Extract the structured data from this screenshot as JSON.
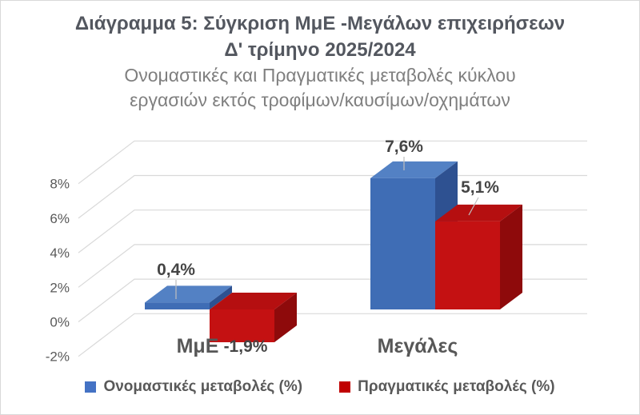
{
  "header": {
    "title_line1": "Διάγραμμα 5: Σύγκριση ΜμΕ -Μεγάλων επιχειρήσεων",
    "title_line2": "Δ' τρίμηνο 2025/2024",
    "subtitle_line1": "Ονομαστικές και Πραγματικές μεταβολές κύκλου",
    "subtitle_line2": "εργασιών εκτός τροφίμων/καυσίμων/οχημάτων"
  },
  "chart_data": {
    "type": "bar",
    "variant": "3d-clustered-column",
    "title": "Διάγραμμα 5: Σύγκριση ΜμΕ -Μεγάλων επιχειρήσεων Δ' τρίμηνο 2025/2024",
    "subtitle": "Ονομαστικές και Πραγματικές μεταβολές κύκλου εργασιών εκτός τροφίμων/καυσίμων/οχημάτων",
    "categories": [
      "ΜμΕ",
      "Μεγάλες"
    ],
    "series": [
      {
        "name": "Ονομαστικές μεταβολές (%)",
        "values": [
          0.4,
          7.6
        ],
        "labels": [
          "0,4%",
          "7,6%"
        ],
        "color": "#3F6DB5",
        "color_top": "#5381C4",
        "color_side": "#2E5191",
        "legend_color": "#4472C4"
      },
      {
        "name": "Πραγματικές μεταβολές (%)",
        "values": [
          -1.9,
          5.1
        ],
        "labels": [
          "-1,9%",
          "5,1%"
        ],
        "color": "#C41112",
        "color_top": "#B50F10",
        "color_side": "#8E0A0B",
        "legend_color": "#C00000"
      }
    ],
    "y_axis": {
      "min": -2,
      "max": 8,
      "step": 2,
      "tick_labels": [
        "8%",
        "6%",
        "4%",
        "2%",
        "0%",
        "-2%"
      ],
      "tick_values": [
        8,
        6,
        4,
        2,
        0,
        -2
      ]
    },
    "legend_position": "bottom",
    "gridlines": true,
    "colors": {
      "gridline": "#d9d9d9",
      "leader_line": "#bfbfbf",
      "axis_text": "#595959",
      "category_text": "#575757",
      "data_label_text": "#454545"
    }
  }
}
